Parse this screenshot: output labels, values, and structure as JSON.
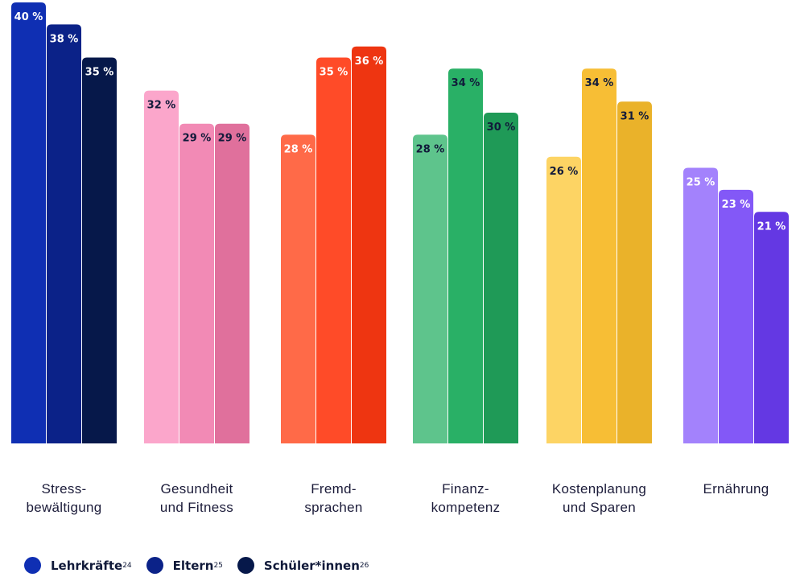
{
  "chart_data": {
    "type": "bar",
    "categories": [
      [
        "Stress-",
        "bewältigung"
      ],
      [
        "Gesundheit",
        "und Fitness"
      ],
      [
        "Fremd-",
        "sprachen"
      ],
      [
        "Finanz-",
        "kompetenz"
      ],
      [
        "Kostenplanung",
        "und Sparen"
      ],
      [
        "Ernährung"
      ]
    ],
    "series": [
      {
        "name": "Lehrkräfte",
        "sup": "24",
        "values": [
          40,
          32,
          28,
          28,
          26,
          25
        ]
      },
      {
        "name": "Eltern",
        "sup": "25",
        "values": [
          38,
          29,
          35,
          34,
          34,
          23
        ]
      },
      {
        "name": "Schüler*innen",
        "sup": "26",
        "values": [
          35,
          29,
          36,
          30,
          31,
          21
        ]
      }
    ],
    "value_suffix": " %",
    "ylim": [
      0,
      40
    ],
    "grid": false,
    "legend_position": "bottom-left",
    "colors": [
      [
        "#0f2fb3",
        "#0b2288",
        "#06184a"
      ],
      [
        "#fba6cb",
        "#f28ab5",
        "#e0709c"
      ],
      [
        "#ff6a48",
        "#ff4b28",
        "#ee3511"
      ],
      [
        "#5ec48c",
        "#29b066",
        "#1f9a57"
      ],
      [
        "#fdd464",
        "#f7be35",
        "#eab22a"
      ],
      [
        "#a382fc",
        "#8358f7",
        "#6438e3"
      ]
    ],
    "label_colors": [
      [
        "#ffffff",
        "#ffffff",
        "#ffffff"
      ],
      [
        "#111a3a",
        "#111a3a",
        "#111a3a"
      ],
      [
        "#ffffff",
        "#ffffff",
        "#ffffff"
      ],
      [
        "#111a3a",
        "#111a3a",
        "#111a3a"
      ],
      [
        "#111a3a",
        "#111a3a",
        "#111a3a"
      ],
      [
        "#ffffff",
        "#ffffff",
        "#ffffff"
      ]
    ]
  },
  "legend": {
    "colors": [
      "#0f2fb3",
      "#0b2288",
      "#06184a"
    ]
  }
}
